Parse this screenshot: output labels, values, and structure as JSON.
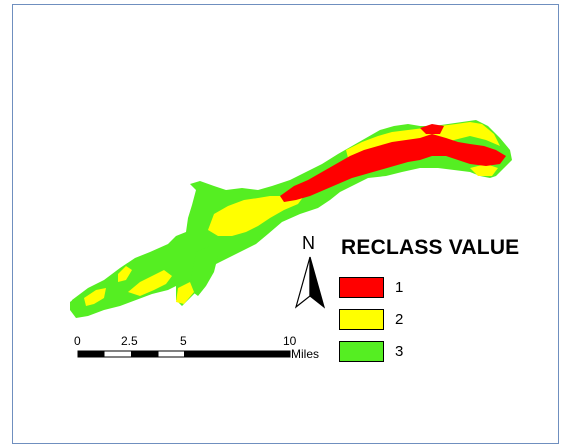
{
  "legend": {
    "title": "RECLASS VALUE",
    "items": [
      {
        "label": "1",
        "color": "#ff0000"
      },
      {
        "label": "2",
        "color": "#ffff00"
      },
      {
        "label": "3",
        "color": "#55ee22"
      }
    ]
  },
  "north_arrow": {
    "letter": "N"
  },
  "scale_bar": {
    "ticks": [
      "0",
      "2.5",
      "5",
      "10"
    ],
    "units": "Miles"
  },
  "map": {
    "class_colors": {
      "1": "#ff0000",
      "2": "#ffff00",
      "3": "#55ee22"
    }
  }
}
